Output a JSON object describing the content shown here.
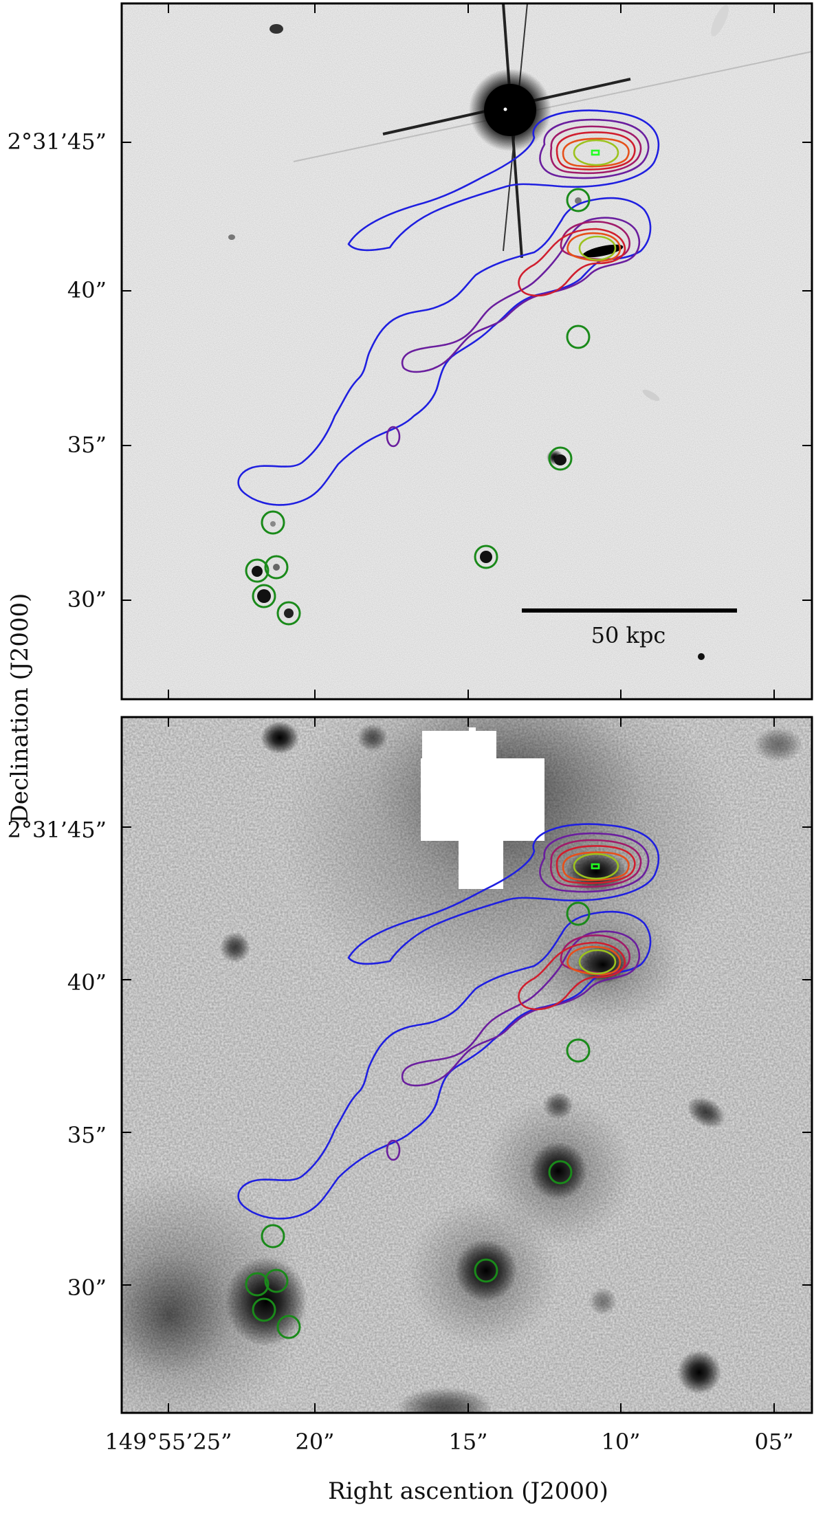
{
  "figure": {
    "y_axis_label": "Declination (J2000)",
    "x_axis_label": "Right ascention (J2000)",
    "dec_ticks": [
      "2°31’45”",
      "40”",
      "35”",
      "30”"
    ],
    "ra_ticks": [
      "149°55’25”",
      "20”",
      "15”",
      "10”",
      "05”"
    ],
    "scale_bar_label": "50 kpc"
  },
  "contour_colors": [
    "#1f1fe0",
    "#6a1e9e",
    "#a01a6a",
    "#d01e2e",
    "#e6501a",
    "#9cc21e",
    "#22ff22"
  ],
  "circle_color": "#1a8a1a",
  "panels": [
    {
      "name": "top-panel",
      "style": "high-resolution optical image, white background, bright star with diffraction spikes"
    },
    {
      "name": "bottom-panel",
      "style": "low-resolution smoothed image, grey diffuse glow, masked white region"
    }
  ]
}
